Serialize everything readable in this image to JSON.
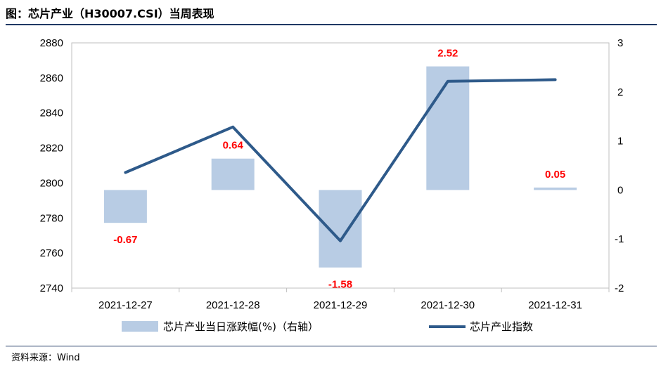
{
  "header": {
    "title": "图：芯片产业（H30007.CSI）当周表现"
  },
  "footer": {
    "source": "资料来源：Wind"
  },
  "chart_data": {
    "type": "bar+line",
    "categories": [
      "2021-12-27",
      "2021-12-28",
      "2021-12-29",
      "2021-12-30",
      "2021-12-31"
    ],
    "series": [
      {
        "name": "芯片产业当日涨跌幅(%)（右轴）",
        "type": "bar",
        "axis": "right",
        "values": [
          -0.67,
          0.64,
          -1.58,
          2.52,
          0.05
        ],
        "data_labels": [
          "-0.67",
          "0.64",
          "-1.58",
          "2.52",
          "0.05"
        ],
        "color": "#b8cce4"
      },
      {
        "name": "芯片产业指数",
        "type": "line",
        "axis": "left",
        "values": [
          2806,
          2832,
          2767,
          2858,
          2859
        ],
        "color": "#2e5a8a"
      }
    ],
    "left_axis": {
      "min": 2740,
      "max": 2880,
      "step": 20,
      "ticks": [
        "2740",
        "2760",
        "2780",
        "2800",
        "2820",
        "2840",
        "2860",
        "2880"
      ]
    },
    "right_axis": {
      "min": -2,
      "max": 3,
      "step": 1,
      "ticks": [
        "-2",
        "-1",
        "0",
        "1",
        "2",
        "3"
      ]
    },
    "label_color": "#ff0000",
    "grid": false,
    "legend_position": "bottom"
  }
}
